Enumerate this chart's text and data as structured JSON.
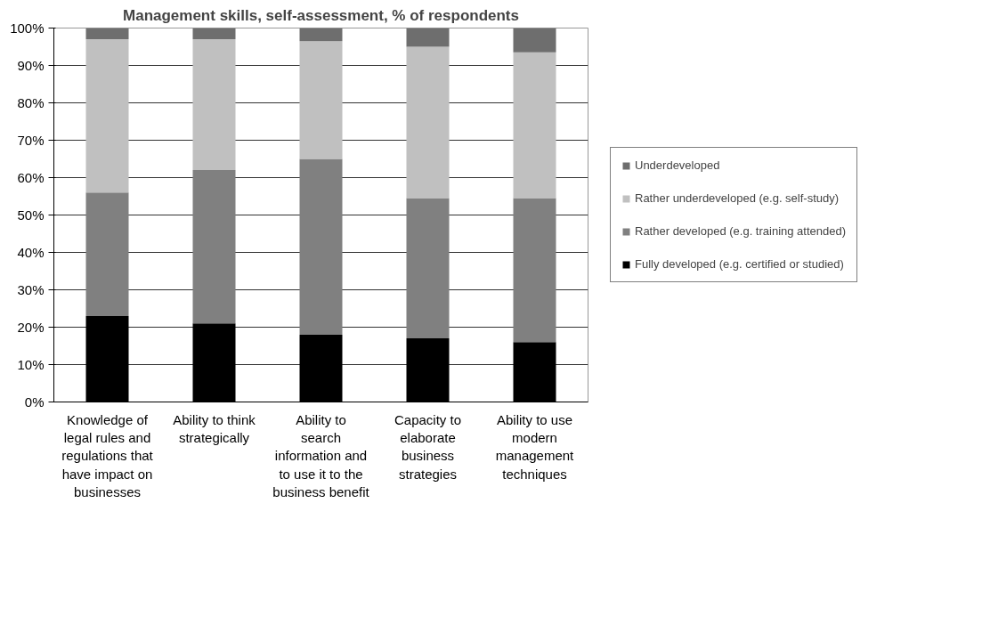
{
  "chart_data": {
    "type": "bar",
    "title": "Management skills, self-assessment, % of respondents",
    "categories": [
      "Knowledge of legal rules and regulations that have impact on businesses",
      "Ability to think strategically",
      "Ability to search information and to use it to the business benefit",
      "Capacity to elaborate business strategies",
      "Ability to use modern management techniques"
    ],
    "stacked": true,
    "series": [
      {
        "name": "Fully developed (e.g. certified or studied)",
        "color": "#000000",
        "values": [
          23,
          21,
          18,
          17,
          16
        ]
      },
      {
        "name": "Rather developed (e.g. training attended)",
        "color": "#808080",
        "values": [
          33,
          41,
          47,
          37.5,
          38.5
        ]
      },
      {
        "name": "Rather underdeveloped (e.g. self-study)",
        "color": "#c0c0c0",
        "values": [
          41,
          35,
          31.5,
          40.5,
          39
        ]
      },
      {
        "name": "Underdeveloped",
        "color": "#6e6e6e",
        "values": [
          3,
          3,
          3.5,
          5,
          6.5
        ]
      }
    ],
    "ylim": [
      0,
      100
    ],
    "yticks": [
      {
        "value": 0,
        "label": "0%"
      },
      {
        "value": 10,
        "label": "10%"
      },
      {
        "value": 20,
        "label": "20%"
      },
      {
        "value": 30,
        "label": "30%"
      },
      {
        "value": 40,
        "label": "40%"
      },
      {
        "value": 50,
        "label": "50%"
      },
      {
        "value": 60,
        "label": "60%"
      },
      {
        "value": 70,
        "label": "70%"
      },
      {
        "value": 80,
        "label": "80%"
      },
      {
        "value": 90,
        "label": "90%"
      },
      {
        "value": 100,
        "label": "100%"
      }
    ],
    "grid": "y",
    "legend": "right"
  }
}
